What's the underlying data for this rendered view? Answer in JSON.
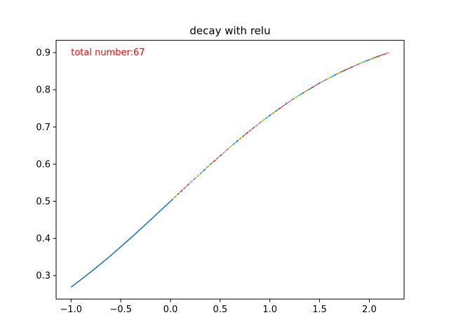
{
  "chart_data": {
    "type": "line",
    "title": "decay with relu",
    "xlabel": "",
    "ylabel": "",
    "xlim": [
      -1.15,
      2.35
    ],
    "ylim": [
      0.237,
      0.933
    ],
    "grid": false,
    "x_ticks": [
      -1.0,
      -0.5,
      0.0,
      0.5,
      1.0,
      1.5,
      2.0
    ],
    "x_tick_labels": [
      "−1.0",
      "−0.5",
      "0.0",
      "0.5",
      "1.0",
      "1.5",
      "2.0"
    ],
    "y_ticks": [
      0.3,
      0.4,
      0.5,
      0.6,
      0.7,
      0.8,
      0.9
    ],
    "y_tick_labels": [
      "0.3",
      "0.4",
      "0.5",
      "0.6",
      "0.7",
      "0.8",
      "0.9"
    ],
    "annotation": {
      "text": "total number:67",
      "x": -1.0,
      "y": 0.9,
      "color": "#ff0000"
    },
    "series": [
      {
        "color": "#1f77b4",
        "x": [
          -1.0,
          -0.8,
          -0.6,
          -0.4,
          -0.2,
          0.0
        ],
        "y": [
          0.269,
          0.31,
          0.354,
          0.401,
          0.45,
          0.5
        ]
      },
      {
        "color": "#ff7f0e",
        "x": [
          0.0,
          0.1,
          0.2,
          0.3,
          0.4,
          0.5,
          0.6,
          0.7,
          0.8,
          0.9,
          1.0,
          1.1,
          1.2,
          1.3,
          1.4,
          1.5,
          1.6,
          1.7,
          1.8,
          1.9,
          2.0,
          2.1,
          2.2
        ],
        "y": [
          0.5,
          0.525,
          0.55,
          0.574,
          0.599,
          0.622,
          0.646,
          0.668,
          0.69,
          0.711,
          0.731,
          0.75,
          0.769,
          0.786,
          0.802,
          0.818,
          0.832,
          0.846,
          0.858,
          0.87,
          0.881,
          0.891,
          0.9
        ]
      }
    ],
    "segment_colors": [
      "#1f77b4",
      "#ff7f0e",
      "#2ca02c",
      "#d62728",
      "#9467bd",
      "#8c564b",
      "#e377c2",
      "#7f7f7f",
      "#bcbd22",
      "#17becf"
    ],
    "segment_count": 67
  }
}
